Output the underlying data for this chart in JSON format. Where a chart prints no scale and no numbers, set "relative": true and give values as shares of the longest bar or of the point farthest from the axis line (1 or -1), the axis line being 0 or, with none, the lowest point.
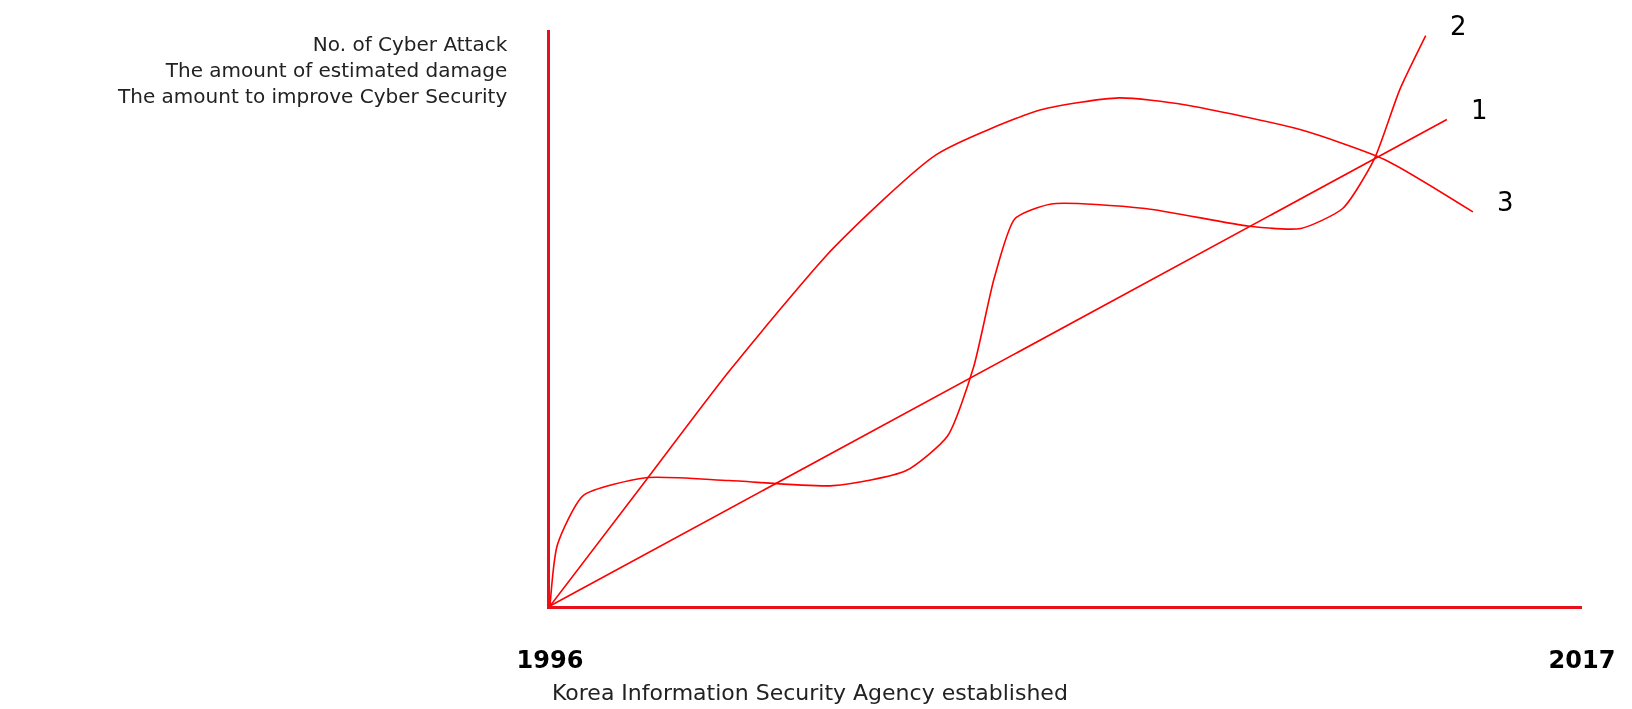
{
  "chart_data": {
    "type": "line",
    "relative": true,
    "ylabel": "No. of Cyber Attack\nThe amount of estimated damage\nThe amount to improve Cyber Security",
    "annotations": [
      "Korea Information Security Agency established"
    ],
    "xlim": [
      1996,
      2017
    ],
    "xticks": [
      1996,
      2017
    ],
    "legend": false,
    "grid": false,
    "marker": "none",
    "line_style": "solid",
    "series": [
      {
        "name": "1",
        "color": "#ff0000",
        "x": [
          1996,
          2014.25
        ],
        "values": [
          0,
          0.853
        ]
      },
      {
        "name": "2",
        "color": "#ff0000",
        "x": [
          1996,
          1996.15,
          1996.68,
          1997.95,
          1999.64,
          2001.76,
          2003.24,
          2004.09,
          2004.62,
          2005.04,
          2005.46,
          2006.2,
          2008.11,
          2010.23,
          2011.28,
          2012.13,
          2012.77,
          2013.29,
          2013.82
        ],
        "values": [
          0,
          0.107,
          0.194,
          0.225,
          0.22,
          0.211,
          0.237,
          0.298,
          0.419,
          0.575,
          0.679,
          0.705,
          0.697,
          0.666,
          0.662,
          0.697,
          0.783,
          0.905,
          1
        ]
      },
      {
        "name": "3",
        "color": "#ff0000",
        "x": [
          1996,
          1997.95,
          1999.64,
          2001.76,
          2003.87,
          2005.99,
          2007.58,
          2008.91,
          2011.28,
          2012.98,
          2014.78
        ],
        "values": [
          0,
          0.22,
          0.411,
          0.627,
          0.792,
          0.87,
          0.891,
          0.879,
          0.835,
          0.783,
          0.691
        ]
      }
    ]
  }
}
